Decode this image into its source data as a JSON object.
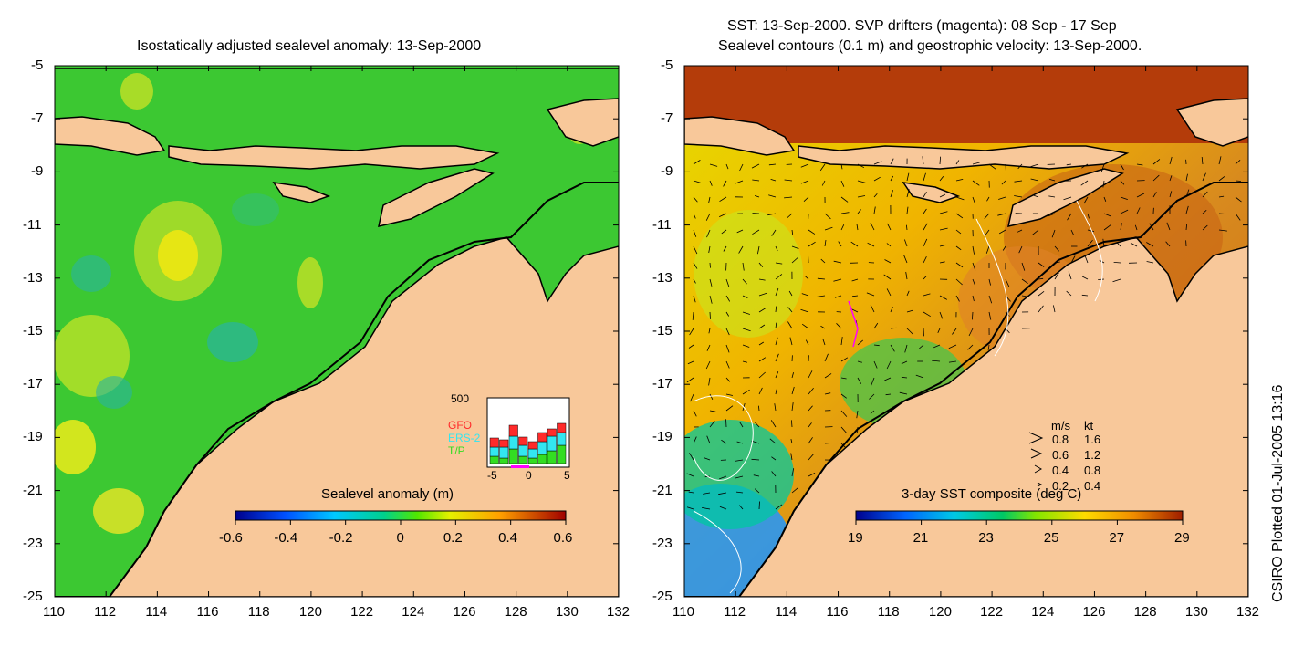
{
  "left_panel": {
    "title": "Isostatically adjusted sealevel anomaly: 13-Sep-2000",
    "colorbar_title": "Sealevel anomaly (m)",
    "colorbar_ticks": [
      "-0.6",
      "-0.4",
      "-0.2",
      "0",
      "0.2",
      "0.4",
      "0.6"
    ],
    "inset": {
      "max_label": "500",
      "legend": [
        "GFO",
        "ERS-2",
        "T/P"
      ],
      "legend_colors": [
        "#ff2a2a",
        "#33e6f0",
        "#33dd22"
      ],
      "x_ticks": [
        "-5",
        "0",
        "5"
      ]
    }
  },
  "right_panel": {
    "title_line1": "SST: 13-Sep-2000. SVP drifters (magenta): 08 Sep - 17 Sep",
    "title_line2": "Sealevel contours (0.1 m) and geostrophic velocity: 13-Sep-2000.",
    "colorbar_title": "3-day SST composite (deg C)",
    "colorbar_ticks": [
      "19",
      "21",
      "23",
      "25",
      "27",
      "29"
    ],
    "velocity_legend": {
      "header_ms": "m/s",
      "header_kt": "kt",
      "rows": [
        {
          "ms": "0.8",
          "kt": "1.6"
        },
        {
          "ms": "0.6",
          "kt": "1.2"
        },
        {
          "ms": "0.4",
          "kt": "0.8"
        },
        {
          "ms": "0.2",
          "kt": "0.4"
        }
      ]
    }
  },
  "y_axis_labels": [
    "-5",
    "-7",
    "-9",
    "-11",
    "-13",
    "-15",
    "-17",
    "-19",
    "-21",
    "-23",
    "-25"
  ],
  "x_axis_labels": [
    "110",
    "112",
    "114",
    "116",
    "118",
    "120",
    "122",
    "124",
    "126",
    "128",
    "130",
    "132"
  ],
  "credit": "CSIRO Plotted 01-Jul-2005 13:16",
  "colors": {
    "land": "#f8c89a",
    "sea_left": "#33cc33",
    "sst_warm": "#c86414",
    "sst_cool": "#ffd200"
  }
}
